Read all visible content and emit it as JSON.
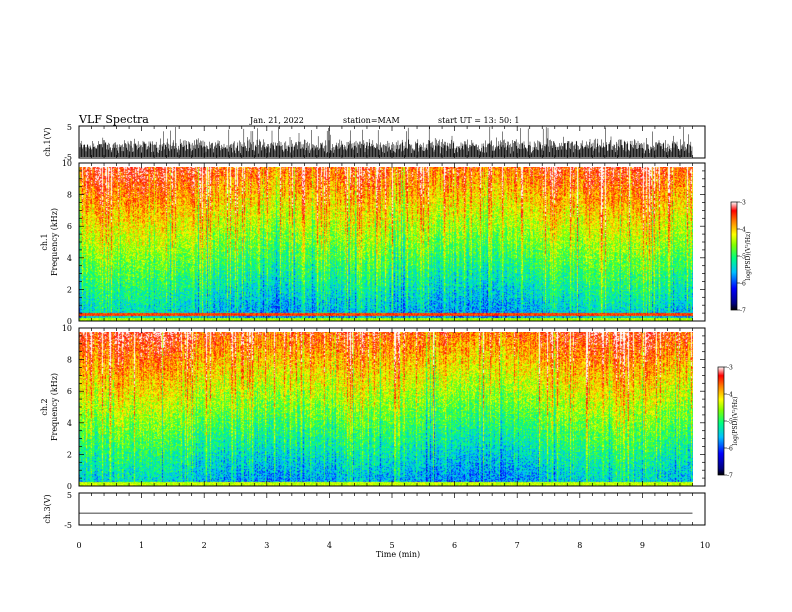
{
  "header": {
    "title": "VLF Spectra",
    "date": "Jan. 21, 2022",
    "station": "station=MAM",
    "start": "start  UT =   13: 50: 1"
  },
  "chart_data": [
    {
      "type": "line",
      "name": "ch1-waveform",
      "ylabel": "ch.1(V)",
      "ylim": [
        -5,
        5
      ],
      "yticks": [
        "5",
        "-5"
      ],
      "xlim": [
        0,
        10
      ],
      "description_values": "dense waveform spikes across 0-9.8 min"
    },
    {
      "type": "heatmap",
      "name": "ch1-spectrogram",
      "ylabel": "ch.1\nFrequency (kHz)",
      "ylabel_lines": [
        "ch.1",
        "Frequency (kHz)"
      ],
      "ylim": [
        0,
        10
      ],
      "yticks": [
        "0",
        "2",
        "4",
        "6",
        "8",
        "10"
      ],
      "xlim": [
        0,
        10
      ],
      "colorbar": {
        "label": "log(PSD)(V²/Hz)",
        "ticks": [
          "-3",
          "-4",
          "-5",
          "-6",
          "-7"
        ],
        "range": [
          -7,
          -3
        ]
      }
    },
    {
      "type": "heatmap",
      "name": "ch2-spectrogram",
      "ylabel": "ch.2\nFrequency (kHz)",
      "ylabel_lines": [
        "ch.2",
        "Frequency (kHz)"
      ],
      "ylim": [
        0,
        10
      ],
      "yticks": [
        "0",
        "2",
        "4",
        "6",
        "8",
        "10"
      ],
      "xlim": [
        0,
        10
      ],
      "colorbar": {
        "label": "log(PSD)(V²/Hz)",
        "ticks": [
          "-3",
          "-4",
          "-5",
          "-6",
          "-7"
        ],
        "range": [
          -7,
          -3
        ]
      }
    },
    {
      "type": "line",
      "name": "ch3-waveform",
      "ylabel": "ch.3(V)",
      "ylim": [
        -5,
        5
      ],
      "yticks": [
        "5",
        "-5"
      ],
      "xlim": [
        0,
        10
      ],
      "x": [
        0,
        9.8
      ],
      "y": [
        -1.3,
        -1.3
      ]
    }
  ],
  "xaxis": {
    "label": "Time (min)",
    "ticks": [
      "0",
      "1",
      "2",
      "3",
      "4",
      "5",
      "6",
      "7",
      "8",
      "9",
      "10"
    ]
  }
}
